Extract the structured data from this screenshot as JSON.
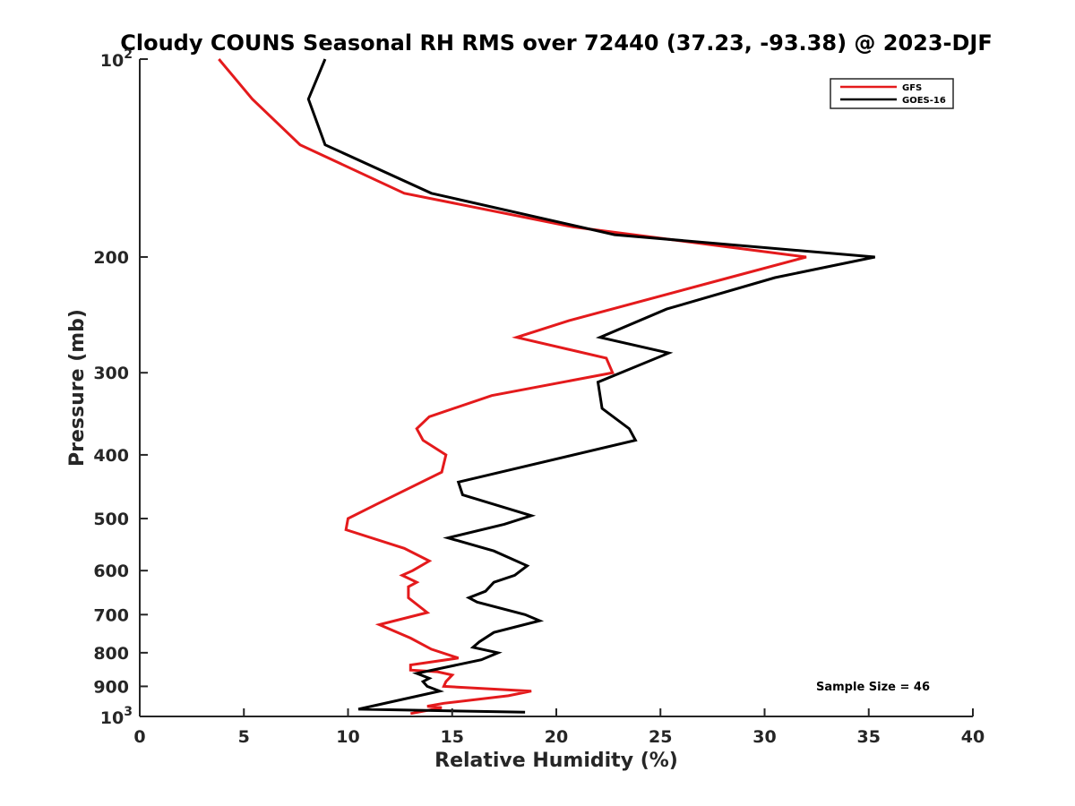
{
  "chart_data": {
    "type": "line",
    "title": "Cloudy COUNS Seasonal RH RMS over 72440 (37.23, -93.38) @ 2023-DJF",
    "xlabel": "Relative Humidity (%)",
    "ylabel": "Pressure (mb)",
    "xlim": [
      0,
      40
    ],
    "ylim": [
      100,
      1000
    ],
    "yscale": "log",
    "y_reversed": true,
    "grid": false,
    "legend_position": "top-right",
    "x_ticks": [
      0,
      5,
      10,
      15,
      20,
      25,
      30,
      35,
      40
    ],
    "x_tick_labels": [
      "0",
      "5",
      "10",
      "15",
      "20",
      "25",
      "30",
      "35",
      "40"
    ],
    "y_ticks": [
      200,
      300,
      400,
      500,
      600,
      700,
      800,
      900
    ],
    "y_tick_labels": [
      "200",
      "300",
      "400",
      "500",
      "600",
      "700",
      "800",
      "900"
    ],
    "y_end_labels": [
      {
        "value": 100,
        "base": "10",
        "exp": "2"
      },
      {
        "value": 1000,
        "base": "10",
        "exp": "3"
      }
    ],
    "annotation": "Sample Size = 46",
    "series": [
      {
        "name": "GFS",
        "color": "#e41a1c",
        "points": [
          [
            3.8,
            100
          ],
          [
            5.4,
            115
          ],
          [
            7.7,
            135
          ],
          [
            12.7,
            160
          ],
          [
            20.8,
            180
          ],
          [
            32.0,
            200
          ],
          [
            28.3,
            215
          ],
          [
            20.6,
            250
          ],
          [
            18.1,
            265
          ],
          [
            22.4,
            285
          ],
          [
            22.7,
            300
          ],
          [
            16.9,
            325
          ],
          [
            13.9,
            350
          ],
          [
            13.3,
            365
          ],
          [
            13.6,
            380
          ],
          [
            14.7,
            400
          ],
          [
            14.5,
            425
          ],
          [
            11.4,
            475
          ],
          [
            10.0,
            500
          ],
          [
            9.9,
            520
          ],
          [
            12.7,
            555
          ],
          [
            13.9,
            580
          ],
          [
            13.1,
            600
          ],
          [
            12.6,
            610
          ],
          [
            13.3,
            625
          ],
          [
            12.9,
            635
          ],
          [
            12.9,
            660
          ],
          [
            13.8,
            695
          ],
          [
            11.5,
            725
          ],
          [
            13.0,
            760
          ],
          [
            14.0,
            790
          ],
          [
            15.3,
            815
          ],
          [
            13.0,
            835
          ],
          [
            13.0,
            850
          ],
          [
            14.3,
            855
          ],
          [
            15.0,
            865
          ],
          [
            14.7,
            885
          ],
          [
            14.6,
            900
          ],
          [
            18.8,
            915
          ],
          [
            17.7,
            930
          ],
          [
            14.6,
            955
          ],
          [
            13.8,
            965
          ],
          [
            14.5,
            970
          ],
          [
            13.0,
            990
          ]
        ]
      },
      {
        "name": "GOES-16",
        "color": "#000000",
        "points": [
          [
            8.9,
            100
          ],
          [
            8.1,
            115
          ],
          [
            8.9,
            135
          ],
          [
            14.0,
            160
          ],
          [
            22.8,
            185
          ],
          [
            35.3,
            200
          ],
          [
            30.5,
            215
          ],
          [
            25.3,
            240
          ],
          [
            22.1,
            265
          ],
          [
            25.4,
            280
          ],
          [
            22.0,
            310
          ],
          [
            22.2,
            340
          ],
          [
            23.5,
            365
          ],
          [
            23.8,
            380
          ],
          [
            15.3,
            440
          ],
          [
            15.5,
            460
          ],
          [
            18.8,
            495
          ],
          [
            17.5,
            510
          ],
          [
            14.8,
            535
          ],
          [
            17.0,
            560
          ],
          [
            18.6,
            590
          ],
          [
            18.0,
            610
          ],
          [
            17.0,
            625
          ],
          [
            16.6,
            645
          ],
          [
            15.8,
            660
          ],
          [
            16.2,
            670
          ],
          [
            18.5,
            700
          ],
          [
            19.2,
            715
          ],
          [
            17.0,
            745
          ],
          [
            16.3,
            770
          ],
          [
            16.0,
            785
          ],
          [
            17.2,
            800
          ],
          [
            16.4,
            820
          ],
          [
            13.3,
            860
          ],
          [
            13.9,
            875
          ],
          [
            13.6,
            885
          ],
          [
            13.8,
            900
          ],
          [
            14.4,
            915
          ],
          [
            10.5,
            975
          ],
          [
            18.5,
            985
          ]
        ]
      }
    ]
  }
}
